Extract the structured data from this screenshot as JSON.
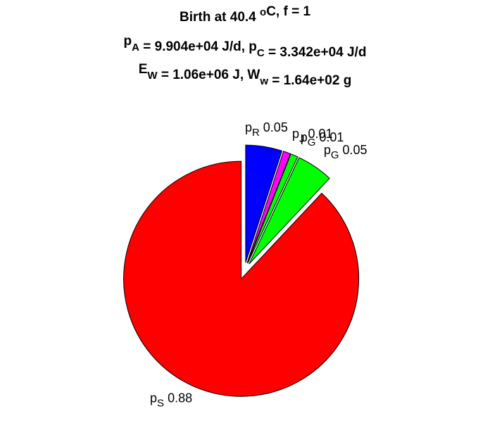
{
  "chart_data": {
    "type": "pie",
    "title": [
      [
        {
          "text": "Birth at 40.4 "
        },
        {
          "sup": "o"
        },
        {
          "text": "C, f = 1"
        }
      ],
      [
        {
          "text": "p"
        },
        {
          "sub": "A"
        },
        {
          "text": " = 9.904e+04 J/d, p"
        },
        {
          "sub": "C"
        },
        {
          "text": " = 3.342e+04 J/d"
        }
      ],
      [
        {
          "text": "E"
        },
        {
          "sub": "W"
        },
        {
          "text": " = 1.06e+06 J, W"
        },
        {
          "sub": "w"
        },
        {
          "text": " = 1.64e+02 g"
        }
      ]
    ],
    "categories": [
      {
        "base": "p",
        "sub": "R"
      },
      {
        "base": "p",
        "sub": "J"
      },
      {
        "base": "p",
        "sub": "G"
      },
      {
        "base": "p",
        "sub": "G"
      },
      {
        "base": "p",
        "sub": "S"
      }
    ],
    "values": [
      0.05,
      0.01,
      0.01,
      0.05,
      0.88
    ],
    "colors": [
      "#0000ff",
      "#ff00ff",
      "#00ff00",
      "#00ff00",
      "#ff0000"
    ],
    "explode": true
  }
}
